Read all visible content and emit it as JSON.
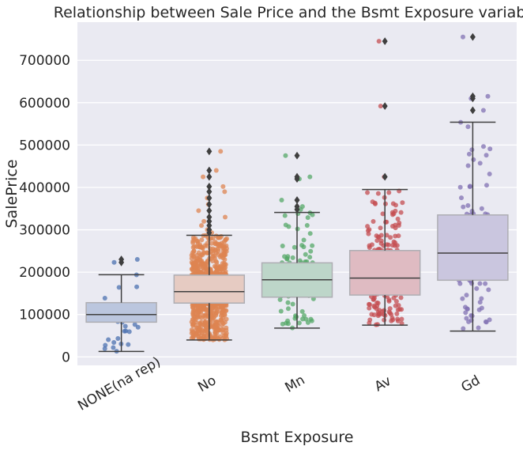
{
  "chart_data": {
    "type": "box",
    "title": "Relationship between Sale Price and the Bsmt Exposure variable",
    "xlabel": "Bsmt Exposure",
    "ylabel": "SalePrice",
    "ylim": [
      -20000,
      790000
    ],
    "yticks": [
      0,
      100000,
      200000,
      300000,
      400000,
      500000,
      600000,
      700000
    ],
    "ytick_labels": [
      "0",
      "100000",
      "200000",
      "300000",
      "400000",
      "500000",
      "600000",
      "700000"
    ],
    "grid": true,
    "categories": [
      "NONE(na rep)",
      "No",
      "Mn",
      "Av",
      "Gd"
    ],
    "colors": [
      "#4c72b0",
      "#dd8452",
      "#55a868",
      "#c44e52",
      "#8172b3"
    ],
    "boxes": [
      {
        "category": "NONE(na rep)",
        "whisker_low": 13000,
        "q1": 82000,
        "median": 100000,
        "q3": 128000,
        "whisker_high": 194000,
        "outliers": [
          223000,
          230000
        ],
        "n_points": 38
      },
      {
        "category": "No",
        "whisker_low": 40000,
        "q1": 127000,
        "median": 154000,
        "q3": 193000,
        "whisker_high": 287000,
        "outliers": [
          293000,
          300000,
          310000,
          320000,
          330000,
          345000,
          360000,
          375000,
          390000,
          402000,
          425000,
          440000,
          485000
        ],
        "n_points": 953
      },
      {
        "category": "Mn",
        "whisker_low": 68000,
        "q1": 141000,
        "median": 182000,
        "q3": 222000,
        "whisker_high": 341000,
        "outliers": [
          348000,
          355000,
          370000,
          420000,
          425000,
          475000
        ],
        "n_points": 114
      },
      {
        "category": "Av",
        "whisker_low": 75000,
        "q1": 146000,
        "median": 186000,
        "q3": 251000,
        "whisker_high": 395000,
        "outliers": [
          425000,
          592000,
          745000
        ],
        "n_points": 221
      },
      {
        "category": "Gd",
        "whisker_low": 61000,
        "q1": 181000,
        "median": 245000,
        "q3": 335000,
        "whisker_high": 554000,
        "outliers": [
          582000,
          610000,
          615000,
          755000
        ],
        "n_points": 134
      }
    ]
  }
}
